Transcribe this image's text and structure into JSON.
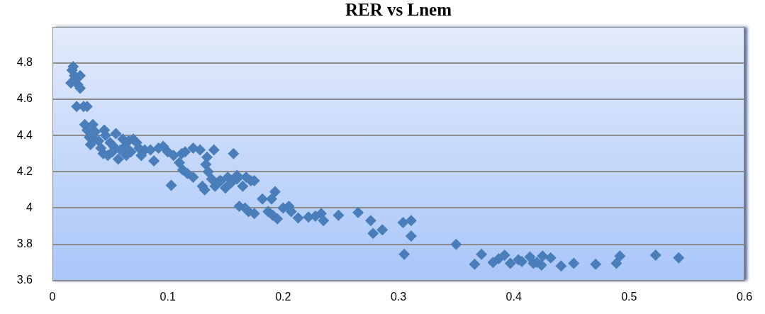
{
  "chart_data": {
    "type": "scatter",
    "title": "RER vs Lnem",
    "marker": "diamond",
    "grid": "y",
    "legend": false,
    "xlim": [
      0,
      0.6
    ],
    "xticks": [
      0,
      0.1,
      0.2,
      0.3,
      0.4,
      0.5,
      0.6
    ],
    "ylim": [
      3.6,
      5
    ],
    "yticks": [
      3.6,
      3.8,
      4,
      4.2,
      4.4,
      4.6,
      4.8
    ],
    "series": [
      {
        "color": "#4a7ebb",
        "x": [
          0.017,
          0.018,
          0.019,
          0.016,
          0.02,
          0.022,
          0.024,
          0.021,
          0.027,
          0.03,
          0.024,
          0.028,
          0.03,
          0.032,
          0.035,
          0.033,
          0.037,
          0.04,
          0.042,
          0.044,
          0.046,
          0.048,
          0.05,
          0.053,
          0.055,
          0.057,
          0.059,
          0.061,
          0.063,
          0.066,
          0.068,
          0.07,
          0.073,
          0.075,
          0.077,
          0.08,
          0.085,
          0.088,
          0.092,
          0.096,
          0.1,
          0.036,
          0.045,
          0.052,
          0.064,
          0.248,
          0.235,
          0.233,
          0.228,
          0.222,
          0.213,
          0.207,
          0.205,
          0.2,
          0.195,
          0.191,
          0.187,
          0.193,
          0.19,
          0.182,
          0.175,
          0.17,
          0.167,
          0.162,
          0.172,
          0.168,
          0.16,
          0.157,
          0.155,
          0.15,
          0.145,
          0.141,
          0.138,
          0.135,
          0.132,
          0.13,
          0.128,
          0.134,
          0.14,
          0.122,
          0.117,
          0.113,
          0.11,
          0.112,
          0.103,
          0.105,
          0.115,
          0.122,
          0.133,
          0.146,
          0.152,
          0.165,
          0.175,
          0.16,
          0.304,
          0.305,
          0.311,
          0.311,
          0.276,
          0.278,
          0.286,
          0.265,
          0.35,
          0.366,
          0.372,
          0.382,
          0.387,
          0.392,
          0.397,
          0.404,
          0.407,
          0.414,
          0.417,
          0.42,
          0.425,
          0.424,
          0.432,
          0.441,
          0.452,
          0.471,
          0.489,
          0.492,
          0.523,
          0.543
        ],
        "values": [
          4.76,
          4.78,
          4.73,
          4.69,
          4.71,
          4.68,
          4.66,
          4.56,
          4.56,
          4.56,
          4.73,
          4.46,
          4.43,
          4.39,
          4.46,
          4.35,
          4.42,
          4.37,
          4.33,
          4.3,
          4.4,
          4.29,
          4.36,
          4.34,
          4.41,
          4.27,
          4.32,
          4.38,
          4.34,
          4.37,
          4.31,
          4.38,
          4.36,
          4.33,
          4.29,
          4.32,
          4.32,
          4.26,
          4.33,
          4.34,
          4.31,
          4.38,
          4.43,
          4.31,
          4.29,
          3.96,
          3.93,
          3.97,
          3.955,
          3.95,
          3.945,
          3.98,
          4.01,
          4,
          3.94,
          3.96,
          3.98,
          4.09,
          4.05,
          4.05,
          3.97,
          3.98,
          4,
          4.01,
          4.15,
          4.17,
          4.18,
          4.3,
          4.14,
          4.11,
          4.15,
          4.12,
          4.16,
          4.2,
          4.1,
          4.12,
          4.32,
          4.28,
          4.32,
          4.17,
          4.19,
          4.21,
          4.25,
          4.3,
          4.125,
          4.29,
          4.31,
          4.33,
          4.24,
          4.15,
          4.17,
          4.12,
          4.15,
          4.16,
          3.92,
          3.745,
          3.93,
          3.845,
          3.93,
          3.86,
          3.88,
          3.975,
          3.8,
          3.69,
          3.745,
          3.7,
          3.72,
          3.74,
          3.695,
          3.715,
          3.705,
          3.73,
          3.695,
          3.7,
          3.735,
          3.685,
          3.725,
          3.68,
          3.695,
          3.69,
          3.695,
          3.735,
          3.74,
          3.725
        ]
      }
    ]
  }
}
